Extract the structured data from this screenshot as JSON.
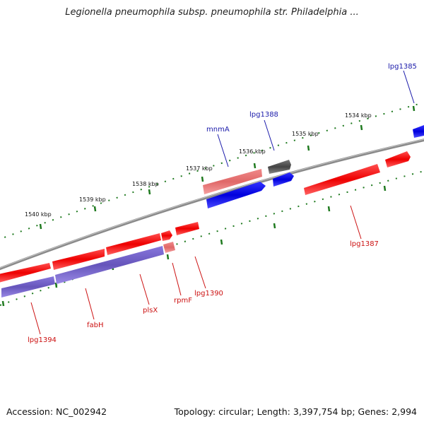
{
  "title": "Legionella pneumophila subsp. pneumophila str. Philadelphia ...",
  "footer": {
    "accession": "Accession: NC_002942",
    "summary": "Topology: circular; Length: 3,397,754 bp; Genes: 2,994"
  },
  "colors": {
    "backbone": "#8a8a8a",
    "tick": "#1f7a1f",
    "forward_gene": "#ee1111",
    "forward_gene_light": "#ee7777",
    "reverse_gene": "#1515dd",
    "rna_gene": "#7766cc",
    "pseudo_gene": "#555555",
    "label_top": "#1a1aaa",
    "label_bottom": "#cc1111"
  },
  "scale": {
    "ticks": [
      {
        "label": "1540 kbp"
      },
      {
        "label": "1539 kbp"
      },
      {
        "label": "1538 kbp"
      },
      {
        "label": "1537 kbp"
      },
      {
        "label": "1536 kbp"
      },
      {
        "label": "1535 kbp"
      },
      {
        "label": "1534 kbp"
      }
    ]
  },
  "gene_labels": [
    {
      "id": "lpg1385",
      "text": "lpg1385",
      "side": "top"
    },
    {
      "id": "lpg1388",
      "text": "lpg1388",
      "side": "top"
    },
    {
      "id": "mnmA",
      "text": "mnmA",
      "side": "top"
    },
    {
      "id": "lpg1387",
      "text": "lpg1387",
      "side": "bottom"
    },
    {
      "id": "lpg1390",
      "text": "lpg1390",
      "side": "bottom"
    },
    {
      "id": "rpmF",
      "text": "rpmF",
      "side": "bottom"
    },
    {
      "id": "plsX",
      "text": "plsX",
      "side": "bottom"
    },
    {
      "id": "fabH",
      "text": "fabH",
      "side": "bottom"
    },
    {
      "id": "lpg1394",
      "text": "lpg1394",
      "side": "bottom"
    }
  ]
}
